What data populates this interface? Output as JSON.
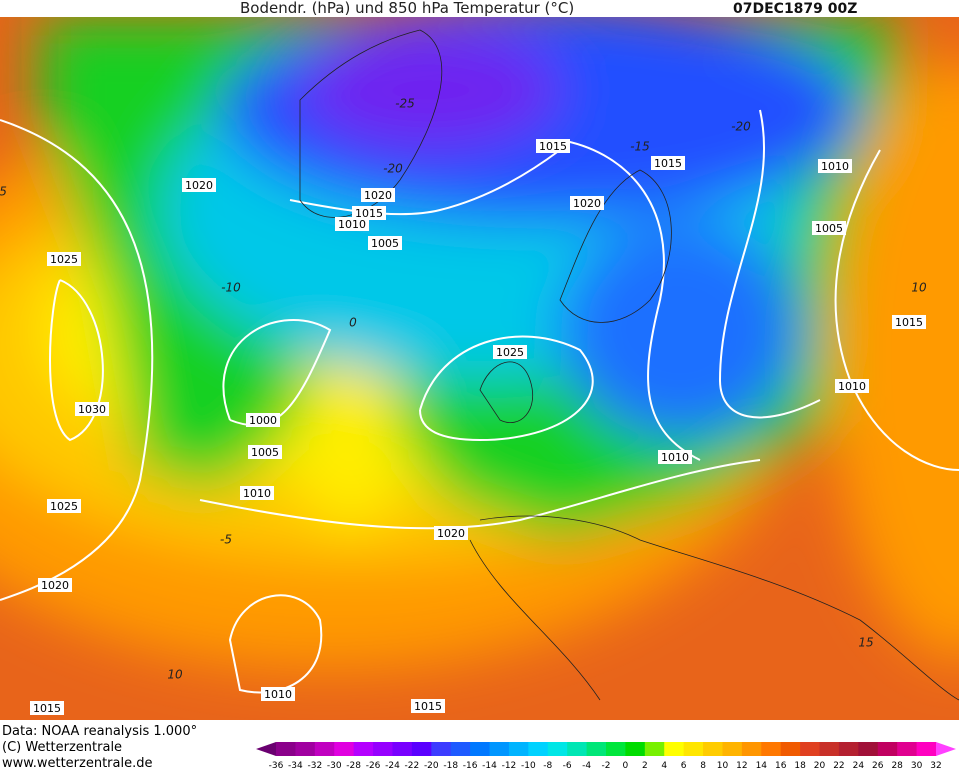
{
  "header": {
    "title": "Bodendr. (hPa) und 850 hPa Temperatur (°C)",
    "date": "07DEC1879 00Z"
  },
  "isobar_labels": [
    "1020",
    "1025",
    "1030",
    "1025",
    "1020",
    "1015",
    "1010",
    "1015",
    "1020",
    "1010",
    "1005",
    "1000",
    "1005",
    "1010",
    "1015",
    "1020",
    "1015",
    "1015",
    "1020",
    "1025",
    "1010",
    "1010",
    "1015",
    "1005",
    "1010"
  ],
  "temperature_labels": [
    "-25",
    "-20",
    "-15",
    "-20",
    "-10",
    "0",
    "-5",
    "10",
    "15",
    "10",
    "5"
  ],
  "footer": [
    "Data: NOAA reanalysis 1.000°",
    "(C) Wetterzentrale",
    "www.wetterzentrale.de"
  ],
  "legend": {
    "ticks": [
      -36,
      -34,
      -32,
      -30,
      -28,
      -26,
      -24,
      -22,
      -20,
      -18,
      -16,
      -14,
      -12,
      -10,
      -8,
      -6,
      -4,
      -2,
      0,
      2,
      4,
      6,
      8,
      10,
      12,
      14,
      16,
      18,
      20,
      22,
      24,
      26,
      28,
      30,
      32
    ]
  }
}
